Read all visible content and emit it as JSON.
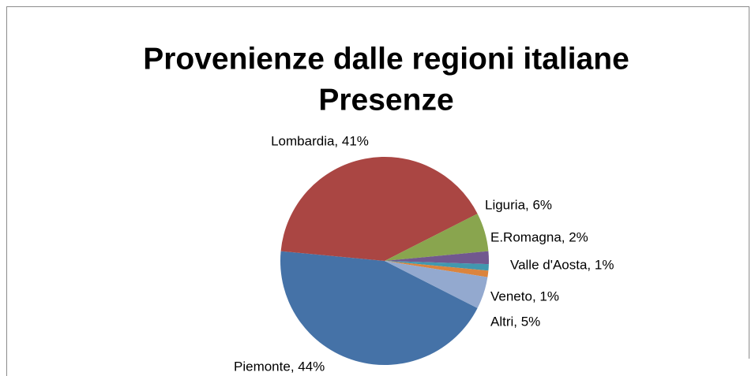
{
  "chart_data": {
    "type": "pie",
    "title": [
      "Provenienze dalle regioni italiane",
      "Presenze"
    ],
    "categories": [
      "Piemonte",
      "Lombardia",
      "Liguria",
      "E.Romagna",
      "Valle d'Aosta",
      "Veneto",
      "Altri"
    ],
    "values": [
      44,
      41,
      6,
      2,
      1,
      1,
      5
    ],
    "value_labels": [
      "Piemonte, 44%",
      "Lombardia, 41%",
      "Liguria, 6%",
      "E.Romagna, 2%",
      "Valle d'Aosta, 1%",
      "Veneto, 1%",
      "Altri, 5%"
    ],
    "colors": [
      "#4572a7",
      "#aa4643",
      "#89a54e",
      "#71588f",
      "#4198af",
      "#db843d",
      "#93a9cf"
    ]
  }
}
